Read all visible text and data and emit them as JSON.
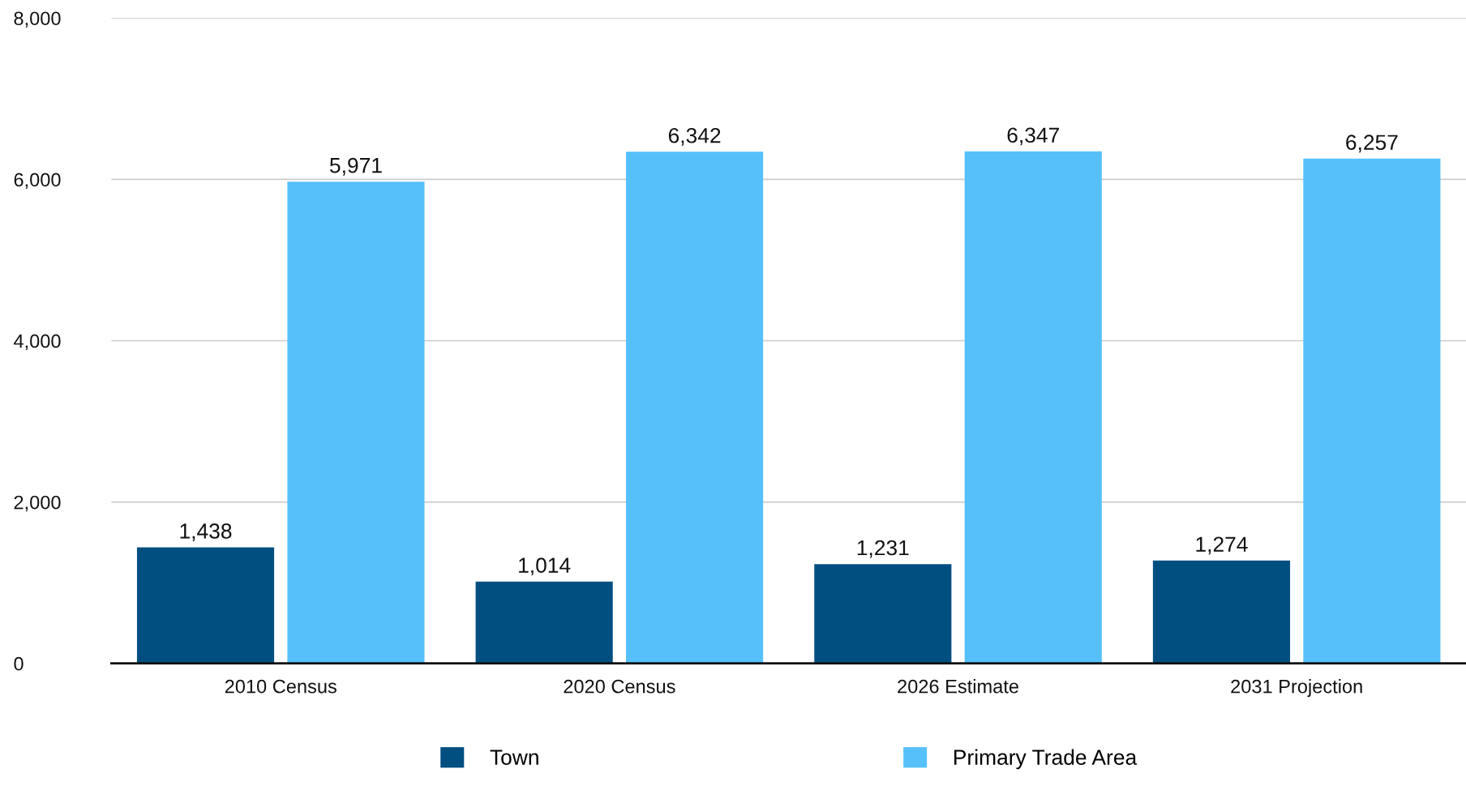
{
  "chart_data": {
    "type": "bar",
    "categories": [
      "2010 Census",
      "2020 Census",
      "2026 Estimate",
      "2031 Projection"
    ],
    "series": [
      {
        "name": "Town",
        "color": "#004f80",
        "values": [
          1438,
          1014,
          1231,
          1274
        ],
        "value_labels": [
          "1,438",
          "1,014",
          "1,231",
          "1,274"
        ]
      },
      {
        "name": "Primary Trade Area",
        "color": "#56c0fb",
        "values": [
          5971,
          6342,
          6347,
          6257
        ],
        "value_labels": [
          "5,971",
          "6,342",
          "6,347",
          "6,257"
        ]
      }
    ],
    "ylim": [
      0,
      8000
    ],
    "yticks": [
      {
        "value": 0,
        "label": "0"
      },
      {
        "value": 2000,
        "label": "2,000"
      },
      {
        "value": 4000,
        "label": "4,000"
      },
      {
        "value": 6000,
        "label": "6,000"
      },
      {
        "value": 8000,
        "label": "8,000"
      }
    ],
    "grid": "y",
    "legend": "bottom"
  }
}
